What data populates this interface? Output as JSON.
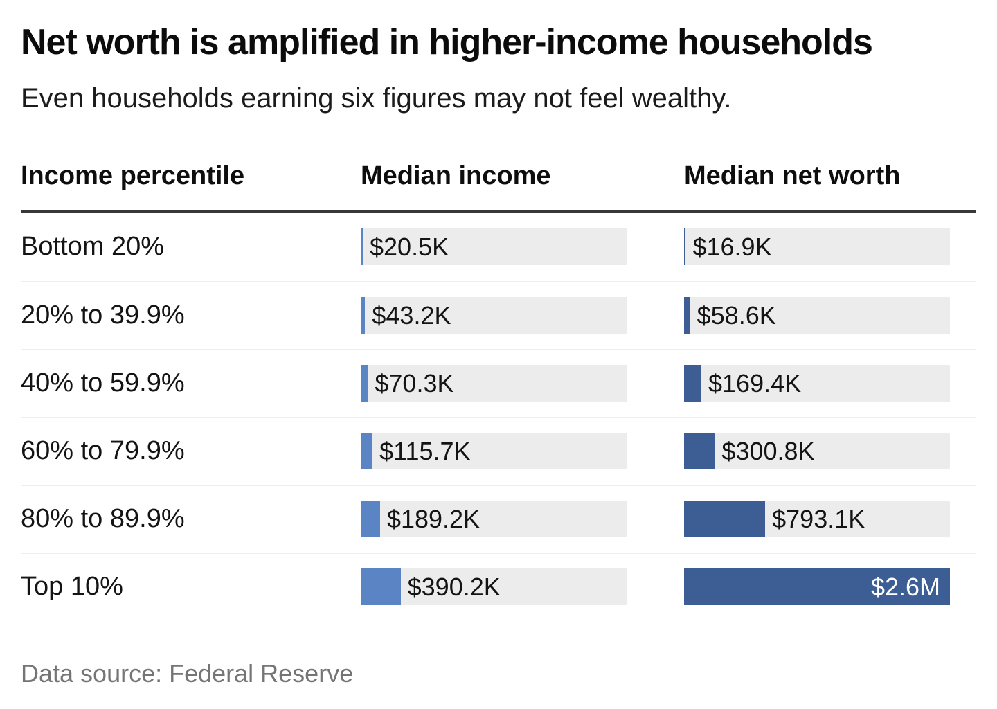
{
  "chart_data": {
    "type": "bar",
    "title": "Net worth is amplified in higher-income households",
    "subtitle": "Even households earning six figures may not feel wealthy.",
    "columns": [
      "Income percentile",
      "Median income",
      "Median net worth"
    ],
    "categories": [
      "Bottom 20%",
      "20% to 39.9%",
      "40% to 59.9%",
      "60% to 79.9%",
      "80% to 89.9%",
      "Top 10%"
    ],
    "series": [
      {
        "name": "Median income",
        "values": [
          20500,
          43200,
          70300,
          115700,
          189200,
          390200
        ],
        "labels": [
          "$20.5K",
          "$43.2K",
          "$70.3K",
          "$115.7K",
          "$189.2K",
          "$390.2K"
        ],
        "color": "#5b84c4"
      },
      {
        "name": "Median net worth",
        "values": [
          16900,
          58600,
          169400,
          300800,
          793100,
          2600000
        ],
        "labels": [
          "$16.9K",
          "$58.6K",
          "$169.4K",
          "$300.8K",
          "$793.1K",
          "$2.6M"
        ],
        "color": "#3d5e94"
      }
    ],
    "xlim": [
      0,
      2600000
    ],
    "bar_track_color": "#ececec",
    "inside_label_color": "#ffffff",
    "inside_label_threshold_pct": 85,
    "grid": "off",
    "legend": "none",
    "source": "Data source: Federal Reserve"
  }
}
